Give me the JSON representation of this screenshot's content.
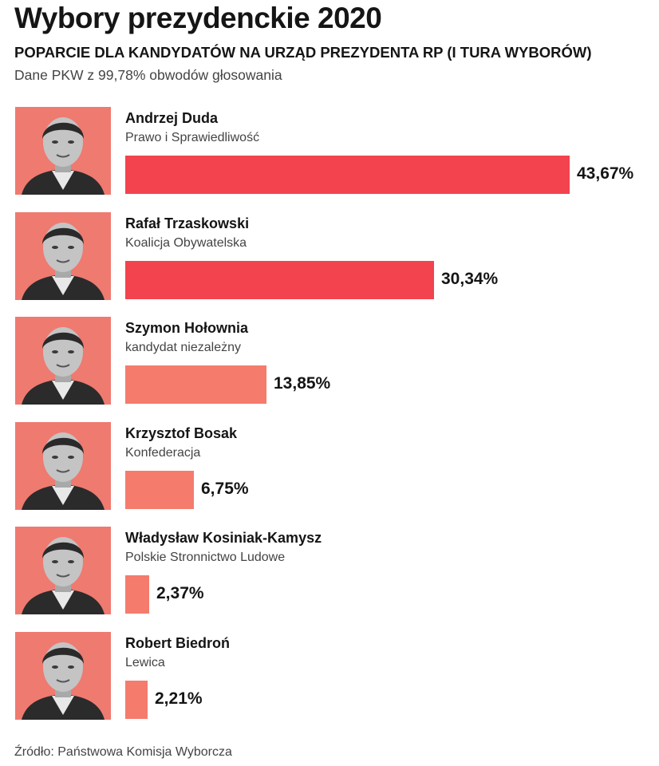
{
  "header": {
    "title": "Wybory prezydenckie 2020",
    "subtitle": "POPARCIE DLA KANDYDATÓW NA URZĄD PREZYDENTA RP (I TURA WYBORÓW)",
    "note": "Dane PKW z 99,78% obwodów głosowania"
  },
  "footer": {
    "source": "Źródło: Państwowa Komisja Wyborcza"
  },
  "colors": {
    "photo_bg": "#ef7a70",
    "bar_major": "#f2434f",
    "bar_minor": "#f57b6c"
  },
  "chart_data": {
    "type": "bar",
    "orientation": "horizontal",
    "title": "Wybory prezydenckie 2020",
    "subtitle": "POPARCIE DLA KANDYDATÓW NA URZĄD PREZYDENTA RP (I TURA WYBORÓW)",
    "xlabel": "",
    "ylabel": "",
    "unit": "%",
    "grid": false,
    "legend": "none",
    "categories": [
      "Andrzej Duda",
      "Rafał Trzaskowski",
      "Szymon Hołownia",
      "Krzysztof Bosak",
      "Władysław Kosiniak-Kamysz",
      "Robert Biedroń"
    ],
    "values": [
      43.67,
      30.34,
      13.85,
      6.75,
      2.37,
      2.21
    ],
    "candidates": [
      {
        "name": "Andrzej Duda",
        "party": "Prawo i Sprawiedliwość",
        "value": 43.67,
        "label": "43,67%",
        "color": "#f2434f"
      },
      {
        "name": "Rafał Trzaskowski",
        "party": "Koalicja Obywatelska",
        "value": 30.34,
        "label": "30,34%",
        "color": "#f2434f"
      },
      {
        "name": "Szymon Hołownia",
        "party": "kandydat niezależny",
        "value": 13.85,
        "label": "13,85%",
        "color": "#f57b6c"
      },
      {
        "name": "Krzysztof Bosak",
        "party": "Konfederacja",
        "value": 6.75,
        "label": "6,75%",
        "color": "#f57b6c"
      },
      {
        "name": "Władysław Kosiniak-Kamysz",
        "party": "Polskie Stronnictwo Ludowe",
        "value": 2.37,
        "label": "2,37%",
        "color": "#f57b6c"
      },
      {
        "name": "Robert Biedroń",
        "party": "Lewica",
        "value": 2.21,
        "label": "2,21%",
        "color": "#f57b6c"
      }
    ]
  }
}
